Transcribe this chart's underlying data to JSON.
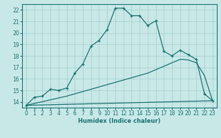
{
  "xlabel": "Humidex (Indice chaleur)",
  "bg_color": "#c8e8e8",
  "grid_color": "#a8d0d0",
  "line_color": "#1a7070",
  "xlim": [
    -0.5,
    23.5
  ],
  "ylim": [
    13.5,
    22.5
  ],
  "xticks": [
    0,
    1,
    2,
    3,
    4,
    5,
    6,
    7,
    8,
    9,
    10,
    11,
    12,
    13,
    14,
    15,
    16,
    17,
    18,
    19,
    20,
    21,
    22,
    23
  ],
  "yticks": [
    14,
    15,
    16,
    17,
    18,
    19,
    20,
    21,
    22
  ],
  "curve1_x": [
    0,
    1,
    2,
    3,
    4,
    5,
    6,
    7,
    8,
    9,
    10,
    11,
    12,
    13,
    14,
    15,
    16,
    17,
    18,
    19,
    20,
    21,
    22,
    23
  ],
  "curve1_y": [
    13.7,
    14.4,
    14.5,
    15.1,
    15.0,
    15.2,
    16.5,
    17.3,
    18.85,
    19.35,
    20.3,
    22.15,
    22.15,
    21.5,
    21.5,
    20.65,
    21.05,
    18.4,
    18.0,
    18.5,
    18.1,
    17.7,
    14.7,
    14.1
  ],
  "curve2_x": [
    0,
    23
  ],
  "curve2_y": [
    13.7,
    14.1
  ],
  "curve3_x": [
    0,
    5,
    10,
    15,
    19,
    20,
    21,
    22,
    23
  ],
  "curve3_y": [
    13.7,
    14.5,
    15.5,
    16.5,
    17.7,
    17.65,
    17.4,
    16.3,
    14.1
  ]
}
